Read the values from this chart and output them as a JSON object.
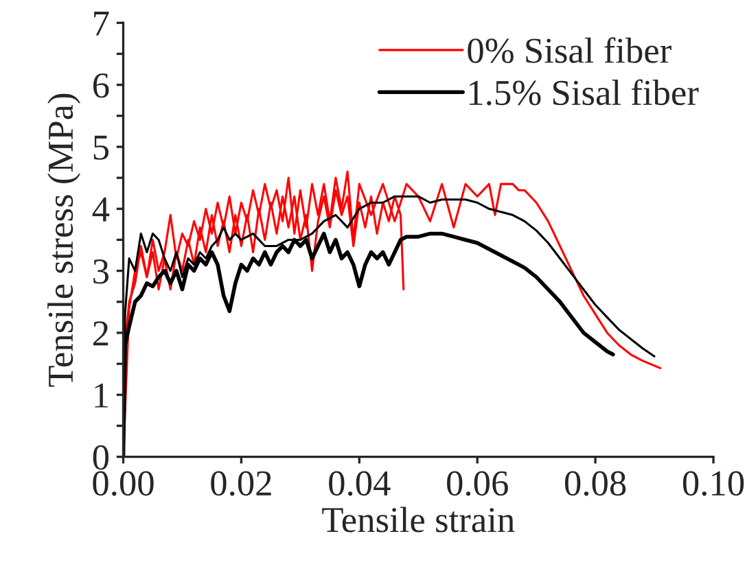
{
  "chart_data": {
    "type": "line",
    "xlabel": "Tensile strain",
    "ylabel": "Tensile stress (MPa)",
    "xlim": [
      0,
      0.1
    ],
    "ylim": [
      0,
      7
    ],
    "xticks": [
      {
        "value": 0,
        "label": "0.00"
      },
      {
        "value": 0.02,
        "label": "0.02"
      },
      {
        "value": 0.04,
        "label": "0.04"
      },
      {
        "value": 0.06,
        "label": "0.06"
      },
      {
        "value": 0.08,
        "label": "0.08"
      },
      {
        "value": 0.1,
        "label": "0.10"
      }
    ],
    "yticks": [
      0,
      1,
      2,
      3,
      4,
      5,
      6,
      7
    ],
    "grid": false,
    "legend": "top right",
    "marker": "none",
    "line_style": "solid",
    "series": [
      {
        "name": "0% Sisal fiber",
        "color": "#ff0000",
        "x": [
          0,
          0.001,
          0.002,
          0.003,
          0.004,
          0.005,
          0.006,
          0.007,
          0.008,
          0.009,
          0.01,
          0.011,
          0.012,
          0.013,
          0.014,
          0.015,
          0.016,
          0.017,
          0.018,
          0.019,
          0.02,
          0.021,
          0.022,
          0.023,
          0.024,
          0.025,
          0.026,
          0.027,
          0.028,
          0.029,
          0.03,
          0.031,
          0.032,
          0.033,
          0.034,
          0.035,
          0.036,
          0.037,
          0.038,
          0.039,
          0.04,
          0.042,
          0.044,
          0.046,
          0.048,
          0.05,
          0.052,
          0.054,
          0.056,
          0.058,
          0.06,
          0.062,
          0.063,
          0.064,
          0.066,
          0.067,
          0.068,
          0.07,
          0.072,
          0.074,
          0.076,
          0.078,
          0.08,
          0.082,
          0.084,
          0.086,
          0.088,
          0.091
        ],
        "values": [
          0,
          2.4,
          3.0,
          3.3,
          2.9,
          3.5,
          3.0,
          3.3,
          3.9,
          3.2,
          3.6,
          3.4,
          3.8,
          3.5,
          4.0,
          3.6,
          4.1,
          3.7,
          4.2,
          3.6,
          4.1,
          3.8,
          4.3,
          3.9,
          4.4,
          4.0,
          4.3,
          3.8,
          4.5,
          3.6,
          4.3,
          3.7,
          4.4,
          3.9,
          4.4,
          3.8,
          4.5,
          4.0,
          4.6,
          3.5,
          4.4,
          3.9,
          4.4,
          3.8,
          4.4,
          4.2,
          3.8,
          4.4,
          3.7,
          4.4,
          4.2,
          4.4,
          3.9,
          4.4,
          4.4,
          4.3,
          4.3,
          4.1,
          3.8,
          3.4,
          3.0,
          2.6,
          2.3,
          2.0,
          1.8,
          1.65,
          1.55,
          1.43
        ]
      },
      {
        "color": "#ff0000",
        "x": [
          0,
          0.0005,
          0.001,
          0.002,
          0.003,
          0.004,
          0.005,
          0.006,
          0.007,
          0.008,
          0.009,
          0.01,
          0.011,
          0.012,
          0.013,
          0.014,
          0.015,
          0.016,
          0.017,
          0.018,
          0.019,
          0.02,
          0.021,
          0.022,
          0.023,
          0.024,
          0.025,
          0.026,
          0.027,
          0.028,
          0.029,
          0.03,
          0.031,
          0.032,
          0.033,
          0.034,
          0.035,
          0.036,
          0.037,
          0.038,
          0.039,
          0.04,
          0.041,
          0.042,
          0.043,
          0.044,
          0.045,
          0.046,
          0.047,
          0.0475
        ],
        "values": [
          0,
          2.0,
          2.5,
          2.8,
          3.4,
          2.9,
          3.3,
          2.7,
          3.2,
          2.7,
          3.3,
          3.0,
          3.5,
          3.1,
          3.7,
          3.3,
          3.9,
          3.4,
          3.8,
          3.3,
          3.9,
          3.4,
          3.9,
          3.3,
          4.0,
          3.5,
          4.1,
          3.6,
          4.2,
          3.7,
          4.2,
          3.5,
          3.9,
          3.0,
          3.8,
          4.2,
          3.7,
          4.3,
          3.9,
          4.2,
          3.4,
          4.1,
          3.7,
          4.2,
          3.6,
          4.1,
          3.8,
          4.2,
          3.9,
          2.7
        ]
      },
      {
        "color": "#000000",
        "x": [
          0,
          0.0003,
          0.001,
          0.002,
          0.003,
          0.004,
          0.005,
          0.006,
          0.007,
          0.008,
          0.009,
          0.01,
          0.011,
          0.012,
          0.013,
          0.014,
          0.015,
          0.016,
          0.017,
          0.018,
          0.019,
          0.02,
          0.022,
          0.024,
          0.026,
          0.028,
          0.03,
          0.032,
          0.034,
          0.036,
          0.038,
          0.04,
          0.042,
          0.044,
          0.046,
          0.048,
          0.05,
          0.052,
          0.054,
          0.056,
          0.058,
          0.06,
          0.062,
          0.064,
          0.066,
          0.068,
          0.07,
          0.072,
          0.074,
          0.076,
          0.078,
          0.08,
          0.082,
          0.084,
          0.086,
          0.088,
          0.09
        ],
        "values": [
          0,
          2.3,
          3.2,
          3.0,
          3.6,
          3.3,
          3.6,
          3.5,
          3.2,
          3.0,
          3.3,
          2.9,
          3.2,
          3.1,
          3.3,
          3.2,
          3.4,
          3.5,
          3.7,
          3.5,
          3.6,
          3.5,
          3.6,
          3.4,
          3.4,
          3.5,
          3.5,
          3.6,
          3.8,
          3.9,
          3.7,
          4.0,
          4.1,
          4.1,
          4.2,
          4.2,
          4.2,
          4.1,
          4.15,
          4.15,
          4.15,
          4.1,
          4.0,
          3.95,
          3.9,
          3.8,
          3.65,
          3.45,
          3.2,
          2.95,
          2.7,
          2.45,
          2.25,
          2.05,
          1.9,
          1.75,
          1.62
        ]
      },
      {
        "name": "1.5% Sisal fiber",
        "color": "#000000",
        "x": [
          0,
          0.0003,
          0.001,
          0.002,
          0.003,
          0.004,
          0.005,
          0.006,
          0.007,
          0.008,
          0.009,
          0.01,
          0.011,
          0.012,
          0.013,
          0.014,
          0.015,
          0.016,
          0.017,
          0.018,
          0.019,
          0.02,
          0.021,
          0.022,
          0.023,
          0.024,
          0.025,
          0.026,
          0.027,
          0.028,
          0.029,
          0.03,
          0.031,
          0.032,
          0.033,
          0.034,
          0.035,
          0.036,
          0.037,
          0.038,
          0.039,
          0.04,
          0.041,
          0.042,
          0.043,
          0.044,
          0.045,
          0.046,
          0.047,
          0.048,
          0.05,
          0.052,
          0.054,
          0.056,
          0.058,
          0.06,
          0.062,
          0.064,
          0.066,
          0.068,
          0.07,
          0.072,
          0.074,
          0.076,
          0.078,
          0.08,
          0.082,
          0.083
        ],
        "values": [
          0,
          1.8,
          2.1,
          2.5,
          2.6,
          2.8,
          2.75,
          2.9,
          3.0,
          2.8,
          3.0,
          2.7,
          3.1,
          3.0,
          3.2,
          3.1,
          3.3,
          3.1,
          2.6,
          2.35,
          2.8,
          3.1,
          3.0,
          3.2,
          3.1,
          3.3,
          3.1,
          3.3,
          3.4,
          3.3,
          3.5,
          3.4,
          3.5,
          3.2,
          3.4,
          3.6,
          3.3,
          3.5,
          3.2,
          3.3,
          3.1,
          2.75,
          3.1,
          3.3,
          3.2,
          3.3,
          3.1,
          3.3,
          3.5,
          3.55,
          3.55,
          3.6,
          3.6,
          3.55,
          3.5,
          3.45,
          3.35,
          3.25,
          3.15,
          3.05,
          2.9,
          2.7,
          2.5,
          2.25,
          2.0,
          1.85,
          1.7,
          1.65
        ]
      }
    ]
  }
}
